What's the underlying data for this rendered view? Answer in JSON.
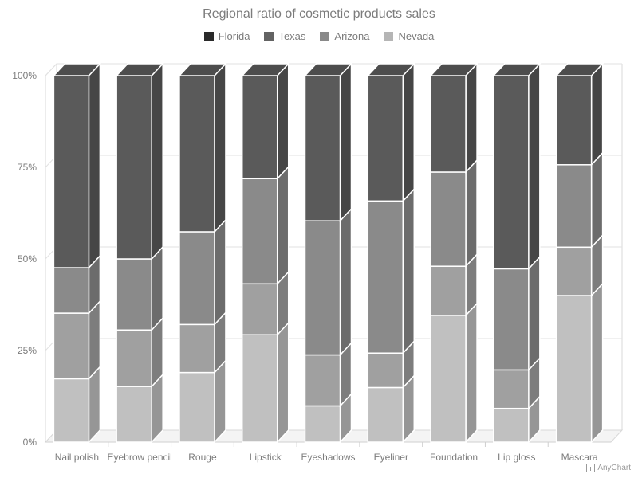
{
  "chart_data": {
    "type": "bar",
    "stacking": "percent",
    "style": "3d",
    "title": "Regional ratio of cosmetic products sales",
    "categories": [
      "Nail polish",
      "Eyebrow pencil",
      "Rouge",
      "Lipstick",
      "Eyeshadows",
      "Eyeliner",
      "Foundation",
      "Lip gloss",
      "Mascara"
    ],
    "series": [
      {
        "name": "Nevada",
        "color": "#c0c0c0",
        "values": [
          17.3,
          15.2,
          19.0,
          29.3,
          9.9,
          14.9,
          34.6,
          9.2,
          40.0
        ]
      },
      {
        "name": "Arizona",
        "color": "#a0a0a0",
        "values": [
          17.9,
          15.4,
          13.1,
          13.9,
          13.9,
          9.4,
          13.4,
          10.5,
          13.2
        ]
      },
      {
        "name": "Texas",
        "color": "#8a8a8a",
        "values": [
          12.4,
          19.4,
          25.3,
          28.7,
          36.6,
          41.5,
          25.7,
          27.6,
          22.5
        ]
      },
      {
        "name": "Florida",
        "color": "#5a5a5a",
        "values": [
          52.4,
          50.0,
          42.6,
          28.1,
          39.6,
          34.2,
          26.3,
          52.7,
          24.3
        ]
      }
    ],
    "legend_order": [
      "Florida",
      "Texas",
      "Arizona",
      "Nevada"
    ],
    "legend_colors": {
      "Florida": "#2a2a2a",
      "Texas": "#636363",
      "Arizona": "#898989",
      "Nevada": "#b5b5b5"
    },
    "legend_position": "top",
    "y_ticks": [
      "0%",
      "25%",
      "50%",
      "75%",
      "100%"
    ],
    "ylim": [
      0,
      100
    ],
    "grid": true
  },
  "credit": "AnyChart"
}
